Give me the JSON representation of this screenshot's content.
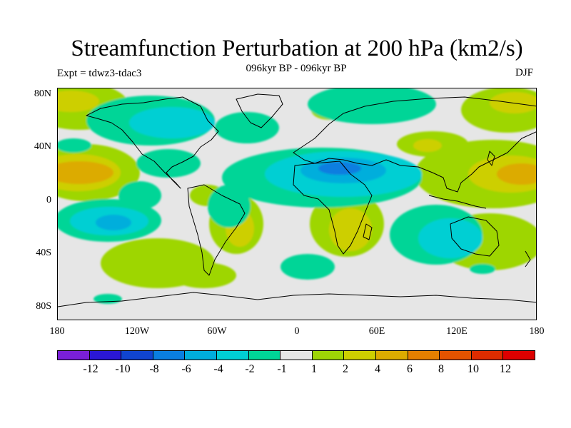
{
  "title": "Streamfunction Perturbation at 200 hPa (km2/s)",
  "subtitle": "096kyr BP - 096kyr BP",
  "experiment": "Expt = tdwz3-tdac3",
  "season": "DJF",
  "axes": {
    "y_labels": [
      "80N",
      "40N",
      "0",
      "40S",
      "80S"
    ],
    "x_labels": [
      "180",
      "120W",
      "60W",
      "0",
      "60E",
      "120E",
      "180"
    ]
  },
  "colorbar": {
    "labels": [
      "-12",
      "-10",
      "-8",
      "-6",
      "-4",
      "-2",
      "-1",
      "1",
      "2",
      "4",
      "6",
      "8",
      "10",
      "12"
    ],
    "colors": [
      "#7a1fd8",
      "#2a17d6",
      "#1044d0",
      "#0a7ee0",
      "#00aedc",
      "#00cfd3",
      "#00d597",
      "#e6e6e6",
      "#9ed606",
      "#cdcf00",
      "#dcab00",
      "#e57f00",
      "#e45300",
      "#dd2c00",
      "#dd0000"
    ]
  }
}
